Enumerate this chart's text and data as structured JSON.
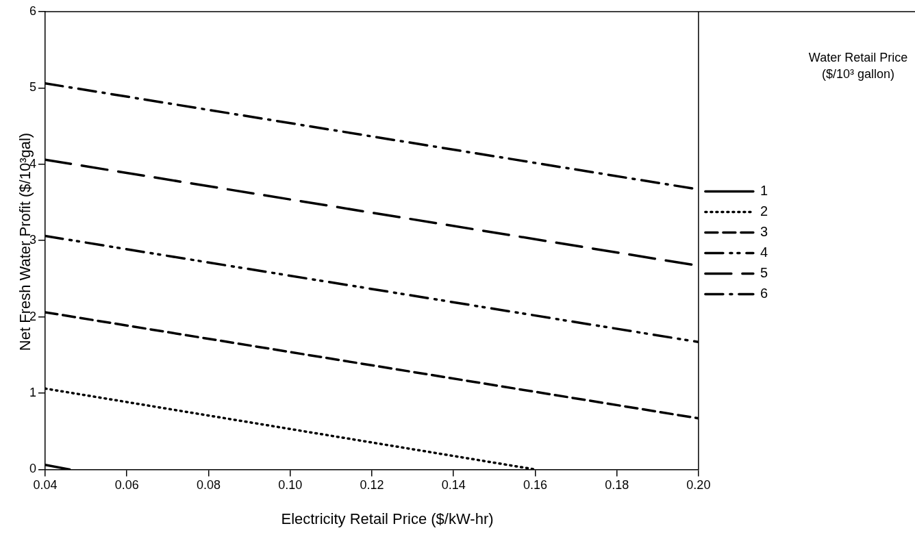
{
  "chart_data": {
    "type": "line",
    "xlabel": "Electricity Retail Price ($/kW-hr)",
    "ylabel": "Net Fresh Water Profit ($/10³gal)",
    "legend_title": "Water Retail Price ($/10³ gallon)",
    "legend": "right",
    "grid": false,
    "marker": "none",
    "xlim": [
      0.04,
      0.2
    ],
    "xticks": [
      {
        "value": 0.04,
        "label": "0.04"
      },
      {
        "value": 0.06,
        "label": "0.06"
      },
      {
        "value": 0.08,
        "label": "0.08"
      },
      {
        "value": 0.1,
        "label": "0.10"
      },
      {
        "value": 0.12,
        "label": "0.12"
      },
      {
        "value": 0.14,
        "label": "0.14"
      },
      {
        "value": 0.16,
        "label": "0.16"
      },
      {
        "value": 0.18,
        "label": "0.18"
      },
      {
        "value": 0.2,
        "label": "0.20"
      }
    ],
    "ylim": [
      0,
      6
    ],
    "yticks": [
      0,
      1,
      2,
      3,
      4,
      5,
      6
    ],
    "series": [
      {
        "name": "1",
        "color": "#000000",
        "line_style": "solid",
        "x": [
          0.04,
          0.046
        ],
        "values": [
          0.06,
          0
        ]
      },
      {
        "name": "2",
        "color": "#000000",
        "line_style": "dotted",
        "x": [
          0.04,
          0.16
        ],
        "values": [
          1.06,
          0
        ]
      },
      {
        "name": "3",
        "color": "#000000",
        "line_style": "dashed",
        "x": [
          0.04,
          0.2
        ],
        "values": [
          2.06,
          0.67
        ]
      },
      {
        "name": "4",
        "color": "#000000",
        "line_style": "dashdotdot",
        "x": [
          0.04,
          0.2
        ],
        "values": [
          3.06,
          1.67
        ]
      },
      {
        "name": "5",
        "color": "#000000",
        "line_style": "longdash",
        "x": [
          0.04,
          0.2
        ],
        "values": [
          4.06,
          2.67
        ]
      },
      {
        "name": "6",
        "color": "#000000",
        "line_style": "dashdot",
        "x": [
          0.04,
          0.2
        ],
        "values": [
          5.06,
          3.67
        ]
      }
    ]
  }
}
